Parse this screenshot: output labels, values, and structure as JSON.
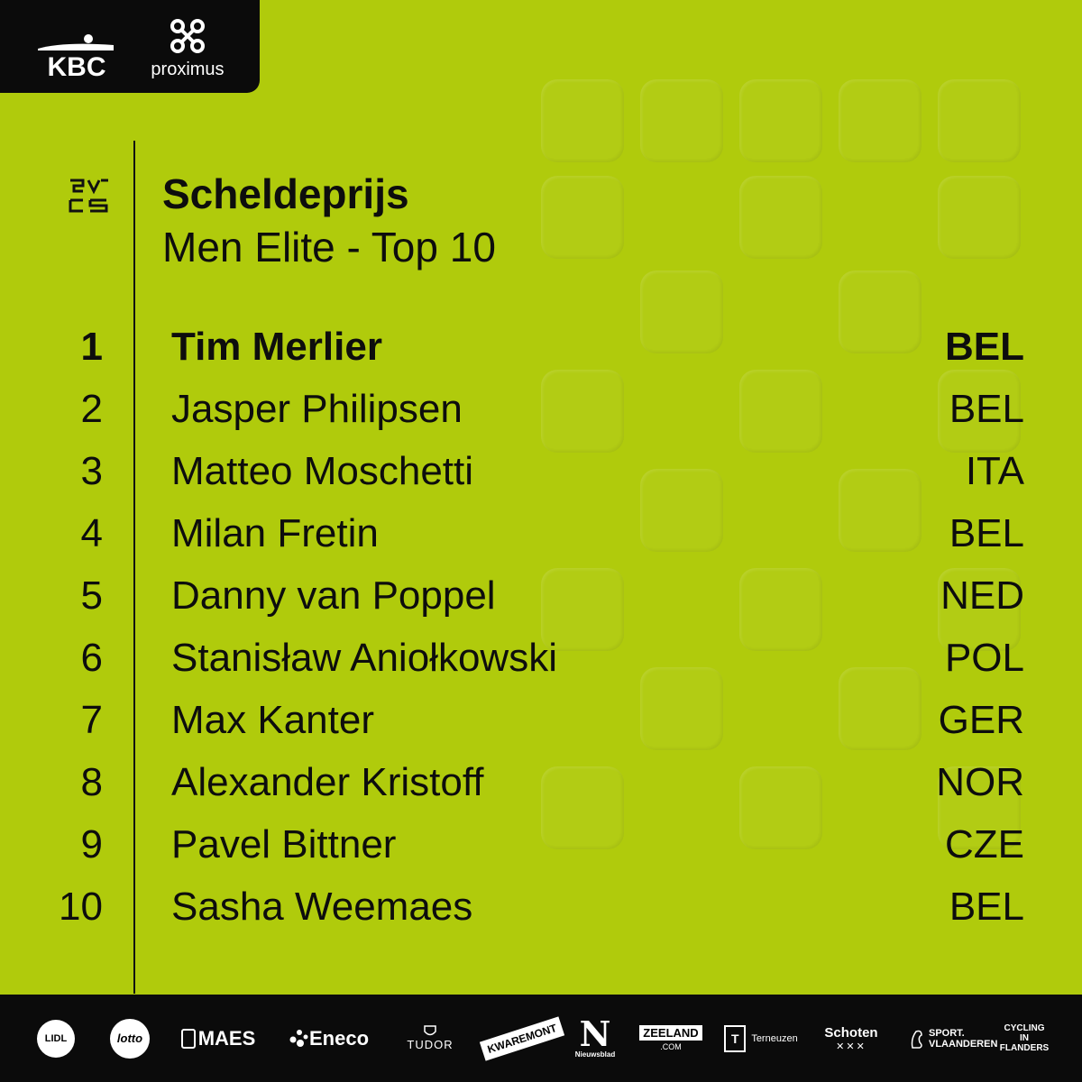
{
  "brand": {
    "primary_bg": "#b0cb0c",
    "text": "#0d0d0d",
    "bar": "#0b0b0b"
  },
  "header_sponsors": {
    "kbc": "KBC",
    "proximus": "proximus"
  },
  "race_logo": {
    "icon": "scheldeprijs-logo-icon"
  },
  "title": "Scheldeprijs",
  "subtitle": "Men Elite - Top 10",
  "results": [
    {
      "rank": "1",
      "name": "Tim Merlier",
      "nat": "BEL"
    },
    {
      "rank": "2",
      "name": "Jasper Philipsen",
      "nat": "BEL"
    },
    {
      "rank": "3",
      "name": "Matteo Moschetti",
      "nat": "ITA"
    },
    {
      "rank": "4",
      "name": "Milan Fretin",
      "nat": "BEL"
    },
    {
      "rank": "5",
      "name": "Danny van Poppel",
      "nat": "NED"
    },
    {
      "rank": "6",
      "name": "Stanisław Aniołkowski",
      "nat": "POL"
    },
    {
      "rank": "7",
      "name": "Max Kanter",
      "nat": "GER"
    },
    {
      "rank": "8",
      "name": "Alexander Kristoff",
      "nat": "NOR"
    },
    {
      "rank": "9",
      "name": "Pavel Bittner",
      "nat": "CZE"
    },
    {
      "rank": "10",
      "name": "Sasha Weemaes",
      "nat": "BEL"
    }
  ],
  "footer_sponsors": {
    "lidl": "LIDL",
    "lotto": "lotto",
    "maes": "MAES",
    "eneco": "Eneco",
    "tudor": "TUDOR",
    "kwaremont": "KWAREMONT",
    "nieuwsblad_mark": "N",
    "nieuwsblad": "Nieuwsblad",
    "zeeland": "ZEELAND",
    "zeeland_com": ".COM",
    "terneuzen": "Terneuzen",
    "schoten": "Schoten",
    "sport_vlaanderen": "SPORT. VLAANDEREN",
    "cycling_flanders": "CYCLING IN FLANDERS"
  }
}
